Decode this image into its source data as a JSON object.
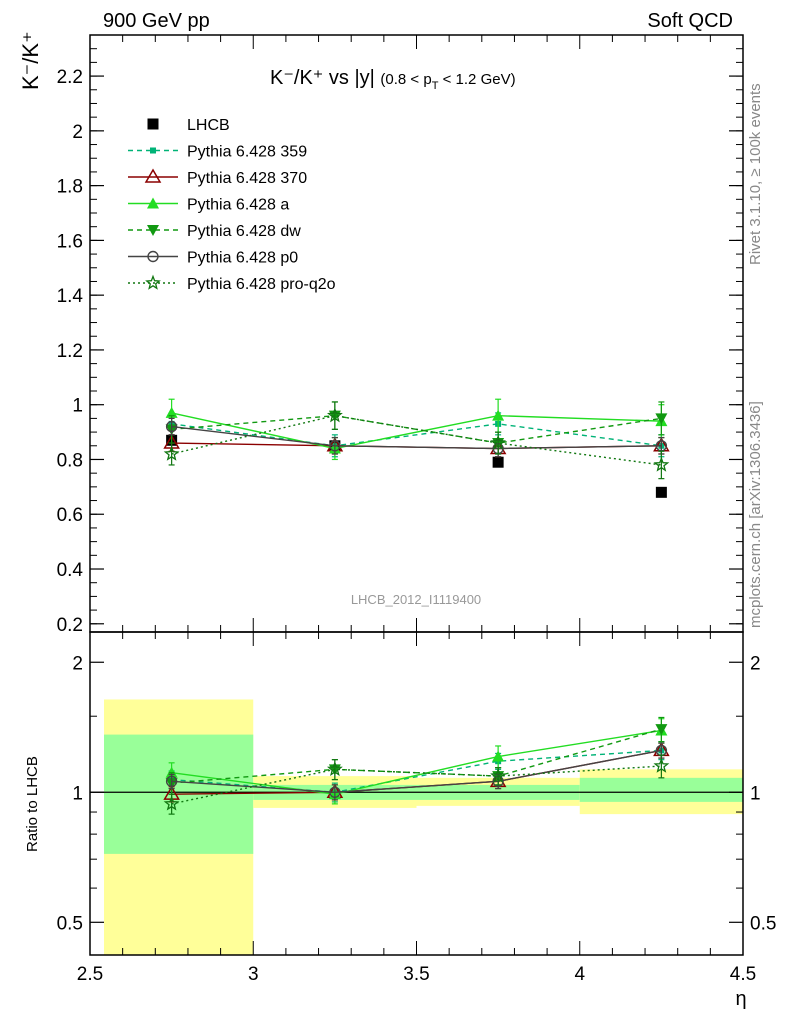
{
  "header": {
    "left": "900 GeV pp",
    "right": "Soft QCD"
  },
  "side_text": {
    "rivet": "Rivet 3.1.10, ≥ 100k events",
    "mcplots": "mcplots.cern.ch [arXiv:1306.3436]"
  },
  "chart_data": [
    {
      "type": "scatter",
      "title": {
        "main": "K⁻/K⁺ vs |y|",
        "cond_prefix": "(0.8 < p",
        "cond_sub": "T",
        "cond_suffix": " < 1.2 GeV)"
      },
      "ylabel": "K⁻/K⁺",
      "xlabel": "η",
      "watermark": "LHCB_2012_I1119400",
      "xlim": [
        2.5,
        4.5
      ],
      "ylim": [
        0.17,
        2.35
      ],
      "yticks": [
        0.2,
        0.4,
        0.6,
        0.8,
        1,
        1.2,
        1.4,
        1.6,
        1.8,
        2,
        2.2
      ],
      "ytick_labels": [
        "0.2",
        "0.4",
        "0.6",
        "0.8",
        "1",
        "1.2",
        "1.4",
        "1.6",
        "1.8",
        "2",
        "2.2"
      ],
      "x": [
        2.75,
        3.25,
        3.75,
        4.25
      ],
      "legend_position": "top-left",
      "series": [
        {
          "name": "LHCB",
          "color": "#000000",
          "marker": "square-filled",
          "line": "none",
          "values": [
            0.87,
            0.85,
            0.79,
            0.68
          ]
        },
        {
          "name": "Pythia 6.428 359",
          "color": "#00b377",
          "marker": "square-small",
          "line": "dashed",
          "values": [
            0.93,
            0.85,
            0.93,
            0.85
          ],
          "errors": [
            0.04,
            0.04,
            0.04,
            0.04
          ]
        },
        {
          "name": "Pythia 6.428 370",
          "color": "#8b0000",
          "marker": "triangle-open",
          "line": "solid",
          "values": [
            0.86,
            0.85,
            0.84,
            0.85
          ],
          "errors": [
            0.03,
            0.03,
            0.03,
            0.03
          ]
        },
        {
          "name": "Pythia 6.428 a",
          "color": "#22dd22",
          "marker": "triangle-filled",
          "line": "solid",
          "values": [
            0.97,
            0.84,
            0.96,
            0.94
          ],
          "errors": [
            0.05,
            0.04,
            0.06,
            0.06
          ]
        },
        {
          "name": "Pythia 6.428 dw",
          "color": "#119911",
          "marker": "triangle-down-filled",
          "line": "dashed",
          "values": [
            0.91,
            0.96,
            0.86,
            0.95
          ],
          "errors": [
            0.05,
            0.05,
            0.04,
            0.06
          ]
        },
        {
          "name": "Pythia 6.428 p0",
          "color": "#444444",
          "marker": "circle-open",
          "line": "solid",
          "values": [
            0.92,
            0.85,
            0.84,
            0.85
          ],
          "errors": [
            0.03,
            0.03,
            0.03,
            0.03
          ]
        },
        {
          "name": "Pythia 6.428 pro-q2o",
          "color": "#117711",
          "marker": "star-open",
          "line": "dotted",
          "values": [
            0.82,
            0.96,
            0.86,
            0.78
          ],
          "errors": [
            0.04,
            0.05,
            0.04,
            0.05
          ]
        }
      ]
    },
    {
      "type": "scatter",
      "ylabel": "Ratio to LHCB",
      "xlabel": "η",
      "xlim": [
        2.5,
        4.5
      ],
      "ylim": [
        0.42,
        2.35
      ],
      "yscale": "log",
      "yticks": [
        0.5,
        1,
        2
      ],
      "ytick_labels": [
        "0.5",
        "1",
        "2"
      ],
      "xticks": [
        2.5,
        3,
        3.5,
        4,
        4.5
      ],
      "xtick_labels": [
        "2.5",
        "3",
        "3.5",
        "4",
        "4.5"
      ],
      "x": [
        2.75,
        3.25,
        3.75,
        4.25
      ],
      "bands": [
        {
          "x0": 2.5,
          "x1": 3.0,
          "total": [
            0.42,
            1.64
          ],
          "stat": [
            0.72,
            1.36
          ]
        },
        {
          "x0": 3.0,
          "x1": 3.5,
          "total": [
            0.92,
            1.09
          ],
          "stat": [
            0.96,
            1.04
          ]
        },
        {
          "x0": 3.5,
          "x1": 4.0,
          "total": [
            0.93,
            1.08
          ],
          "stat": [
            0.96,
            1.04
          ]
        },
        {
          "x0": 4.0,
          "x1": 4.5,
          "total": [
            0.89,
            1.13
          ],
          "stat": [
            0.95,
            1.08
          ]
        }
      ],
      "series": [
        {
          "name": "Pythia 6.428 359",
          "color": "#00b377",
          "marker": "square-small",
          "line": "dashed",
          "values": [
            1.07,
            1.0,
            1.18,
            1.25
          ],
          "errors": [
            0.05,
            0.05,
            0.05,
            0.06
          ]
        },
        {
          "name": "Pythia 6.428 370",
          "color": "#8b0000",
          "marker": "triangle-open",
          "line": "solid",
          "values": [
            0.99,
            1.0,
            1.06,
            1.25
          ],
          "errors": [
            0.04,
            0.04,
            0.04,
            0.05
          ]
        },
        {
          "name": "Pythia 6.428 a",
          "color": "#22dd22",
          "marker": "triangle-filled",
          "line": "solid",
          "values": [
            1.11,
            0.99,
            1.21,
            1.39
          ],
          "errors": [
            0.06,
            0.05,
            0.07,
            0.09
          ]
        },
        {
          "name": "Pythia 6.428 dw",
          "color": "#119911",
          "marker": "triangle-down-filled",
          "line": "dashed",
          "values": [
            1.05,
            1.13,
            1.09,
            1.4
          ],
          "errors": [
            0.06,
            0.06,
            0.05,
            0.09
          ]
        },
        {
          "name": "Pythia 6.428 p0",
          "color": "#444444",
          "marker": "circle-open",
          "line": "solid",
          "values": [
            1.06,
            1.0,
            1.06,
            1.25
          ],
          "errors": [
            0.04,
            0.04,
            0.04,
            0.05
          ]
        },
        {
          "name": "Pythia 6.428 pro-q2o",
          "color": "#117711",
          "marker": "star-open",
          "line": "dotted",
          "values": [
            0.94,
            1.13,
            1.09,
            1.15
          ],
          "errors": [
            0.05,
            0.06,
            0.05,
            0.07
          ]
        }
      ]
    }
  ]
}
